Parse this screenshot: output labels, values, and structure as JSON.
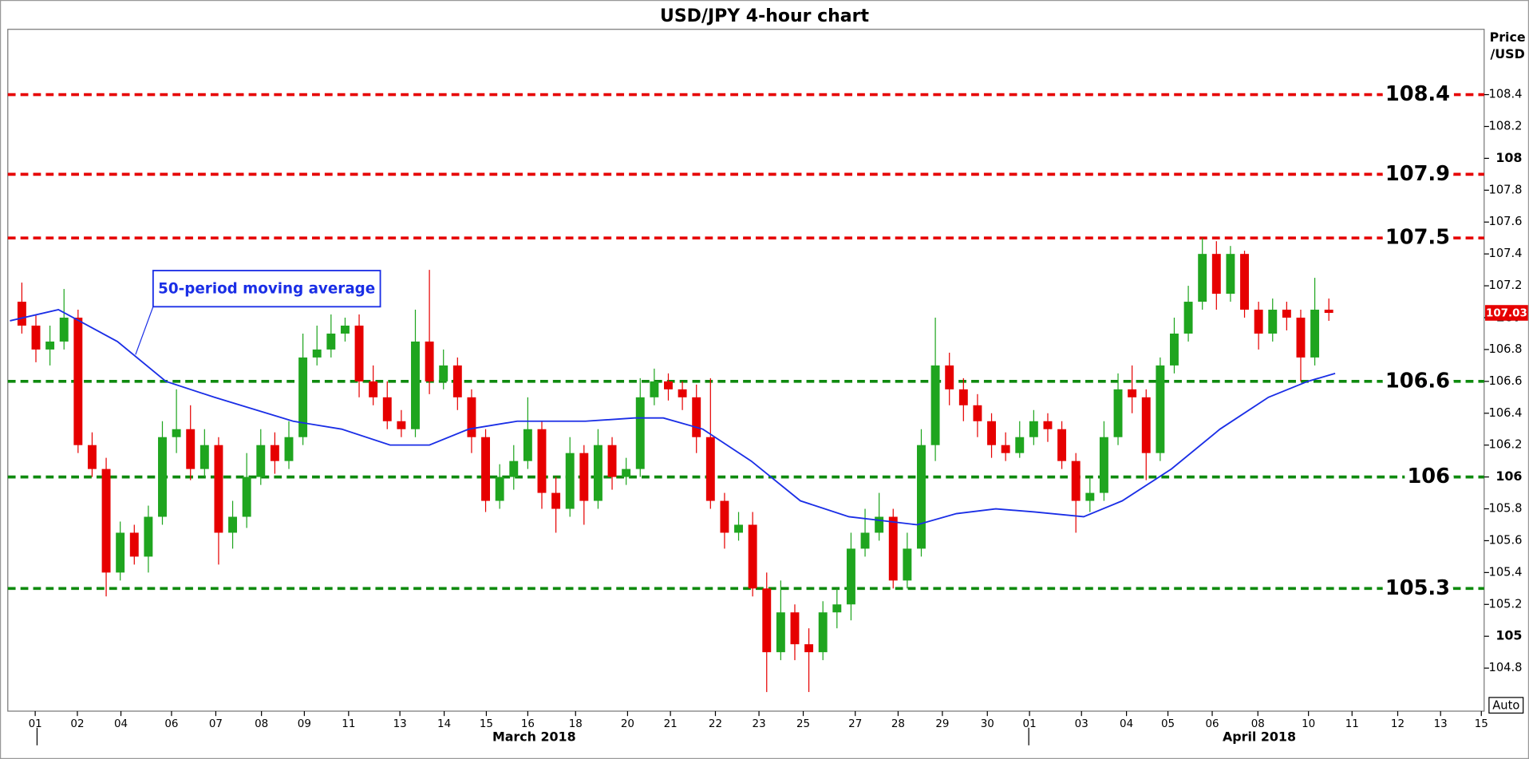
{
  "chart_data": {
    "type": "candlestick",
    "title": "USD/JPY 4-hour chart",
    "y_label": [
      "Price",
      "/USD"
    ],
    "up_color": "#1fa51f",
    "down_color": "#e60000",
    "x": [
      2,
      4,
      6,
      8,
      10,
      12,
      14,
      16,
      18,
      20,
      22,
      24,
      26,
      28,
      30,
      32,
      34,
      36,
      38,
      40,
      42,
      44,
      46,
      48,
      50,
      52,
      54,
      56,
      58,
      60,
      62,
      64,
      66,
      68,
      70,
      72,
      74,
      76,
      78,
      80,
      82,
      84,
      86,
      88,
      90,
      92,
      94,
      96,
      98,
      100,
      102,
      104,
      106,
      108,
      110,
      112,
      114,
      116,
      118,
      120,
      122,
      124,
      126,
      128,
      130,
      132,
      134,
      136,
      138,
      140,
      142,
      144,
      146,
      148,
      150,
      152,
      154,
      156,
      158,
      160,
      162,
      164,
      166,
      168,
      170,
      172,
      174,
      176,
      178,
      180,
      182,
      184,
      186,
      188
    ],
    "open": [
      107.1,
      106.95,
      106.8,
      106.85,
      107.0,
      106.2,
      106.05,
      105.4,
      105.65,
      105.5,
      105.75,
      106.25,
      106.3,
      106.05,
      106.2,
      105.65,
      105.75,
      106.0,
      106.2,
      106.1,
      106.25,
      106.75,
      106.8,
      106.9,
      106.95,
      106.6,
      106.5,
      106.35,
      106.3,
      106.85,
      106.6,
      106.7,
      106.5,
      106.25,
      105.85,
      106.0,
      106.1,
      106.3,
      105.9,
      105.8,
      106.15,
      105.85,
      106.2,
      106.0,
      106.05,
      106.5,
      106.6,
      106.55,
      106.5,
      106.25,
      105.85,
      105.65,
      105.7,
      105.3,
      104.9,
      105.15,
      104.95,
      104.9,
      105.15,
      105.2,
      105.55,
      105.65,
      105.75,
      105.35,
      105.55,
      106.2,
      106.7,
      106.55,
      106.45,
      106.35,
      106.2,
      106.15,
      106.25,
      106.35,
      106.3,
      106.1,
      105.85,
      105.9,
      106.25,
      106.55,
      106.5,
      106.15,
      106.7,
      106.9,
      107.1,
      107.4,
      107.15,
      107.4,
      107.05,
      106.9,
      107.05,
      107.0,
      106.75,
      107.05
    ],
    "high": [
      107.22,
      107.02,
      106.95,
      107.18,
      107.05,
      106.28,
      106.12,
      105.72,
      105.7,
      105.82,
      106.35,
      106.55,
      106.45,
      106.3,
      106.25,
      105.85,
      106.15,
      106.3,
      106.28,
      106.35,
      106.9,
      106.95,
      107.02,
      107.0,
      107.02,
      106.7,
      106.6,
      106.42,
      107.05,
      107.3,
      106.8,
      106.75,
      106.55,
      106.3,
      106.08,
      106.2,
      106.5,
      106.35,
      106.0,
      106.25,
      106.2,
      106.3,
      106.25,
      106.12,
      106.62,
      106.68,
      106.65,
      106.6,
      106.58,
      106.62,
      105.9,
      105.78,
      105.78,
      105.4,
      105.35,
      105.2,
      105.05,
      105.22,
      105.3,
      105.65,
      105.8,
      105.9,
      105.8,
      105.65,
      106.3,
      107.0,
      106.78,
      106.62,
      106.52,
      106.4,
      106.28,
      106.35,
      106.42,
      106.4,
      106.35,
      106.15,
      106.0,
      106.35,
      106.65,
      106.7,
      106.55,
      106.75,
      107.0,
      107.2,
      107.5,
      107.48,
      107.45,
      107.42,
      107.1,
      107.12,
      107.1,
      107.05,
      107.25,
      107.12
    ],
    "low": [
      106.9,
      106.72,
      106.7,
      106.8,
      106.15,
      106.0,
      105.25,
      105.35,
      105.45,
      105.4,
      105.7,
      106.15,
      105.98,
      106.0,
      105.45,
      105.55,
      105.68,
      105.95,
      106.02,
      106.05,
      106.2,
      106.7,
      106.75,
      106.85,
      106.5,
      106.45,
      106.3,
      106.25,
      106.25,
      106.52,
      106.55,
      106.42,
      106.15,
      105.78,
      105.8,
      105.92,
      106.05,
      105.8,
      105.65,
      105.75,
      105.7,
      105.8,
      105.92,
      105.95,
      106.0,
      106.45,
      106.48,
      106.42,
      106.15,
      105.8,
      105.55,
      105.6,
      105.25,
      104.65,
      104.85,
      104.85,
      104.65,
      104.85,
      105.05,
      105.1,
      105.5,
      105.6,
      105.3,
      105.3,
      105.5,
      106.1,
      106.45,
      106.35,
      106.25,
      106.12,
      106.1,
      106.12,
      106.2,
      106.22,
      106.05,
      105.65,
      105.78,
      105.85,
      106.2,
      106.4,
      105.98,
      106.1,
      106.65,
      106.85,
      107.05,
      107.05,
      107.1,
      107.0,
      106.8,
      106.85,
      106.92,
      106.6,
      106.7,
      106.98
    ],
    "close": [
      106.95,
      106.8,
      106.85,
      107.0,
      106.2,
      106.05,
      105.4,
      105.65,
      105.5,
      105.75,
      106.25,
      106.3,
      106.05,
      106.2,
      105.65,
      105.75,
      106.0,
      106.2,
      106.1,
      106.25,
      106.75,
      106.8,
      106.9,
      106.95,
      106.6,
      106.5,
      106.35,
      106.3,
      106.85,
      106.6,
      106.7,
      106.5,
      106.25,
      105.85,
      106.0,
      106.1,
      106.3,
      105.9,
      105.8,
      106.15,
      105.85,
      106.2,
      106.0,
      106.05,
      106.5,
      106.6,
      106.55,
      106.5,
      106.25,
      105.85,
      105.65,
      105.7,
      105.3,
      104.9,
      105.15,
      104.95,
      104.9,
      105.15,
      105.2,
      105.55,
      105.65,
      105.75,
      105.35,
      105.55,
      106.2,
      106.7,
      106.55,
      106.45,
      106.35,
      106.2,
      106.15,
      106.25,
      106.35,
      106.3,
      106.1,
      105.85,
      105.9,
      106.25,
      106.55,
      106.5,
      106.15,
      106.7,
      106.9,
      107.1,
      107.4,
      107.15,
      107.4,
      107.05,
      106.9,
      107.05,
      107.0,
      106.75,
      107.05,
      107.03
    ],
    "moving_average": {
      "color": "#1a2ee6",
      "x": [
        0.3,
        7.2,
        15.6,
        22.5,
        29.4,
        40.6,
        47.5,
        54.4,
        60,
        65.6,
        72.5,
        82.2,
        89.2,
        93.3,
        98.9,
        105.8,
        112.8,
        119.7,
        129.4,
        135,
        140.6,
        146.1,
        153.1,
        158.6,
        165.6,
        172.5,
        179.4,
        185,
        188.9
      ],
      "values": [
        106.98,
        107.05,
        106.85,
        106.6,
        106.5,
        106.35,
        106.3,
        106.2,
        106.2,
        106.3,
        106.35,
        106.35,
        106.37,
        106.37,
        106.3,
        106.1,
        105.85,
        105.75,
        105.7,
        105.77,
        105.8,
        105.78,
        105.75,
        105.85,
        106.05,
        106.3,
        106.5,
        106.6,
        106.65
      ]
    },
    "annotation": "50-period moving average",
    "levels": [
      {
        "value": 108.4,
        "color": "#e60000"
      },
      {
        "value": 107.9,
        "color": "#e60000"
      },
      {
        "value": 107.5,
        "color": "#e60000"
      },
      {
        "value": 106.6,
        "color": "#0e8a0e"
      },
      {
        "value": 106,
        "color": "#0e8a0e"
      },
      {
        "value": 105.3,
        "color": "#0e8a0e"
      }
    ],
    "last_price": 107.03,
    "xlim": [
      0,
      210.1
    ],
    "ylim": [
      104.53,
      108.81
    ],
    "yticks": [
      104.8,
      105,
      105.2,
      105.4,
      105.6,
      105.8,
      106,
      106.2,
      106.4,
      106.6,
      106.8,
      107,
      107.2,
      107.4,
      107.6,
      107.8,
      108,
      108.2,
      108.4
    ],
    "xticks": [
      {
        "value": 3.9,
        "label": "01"
      },
      {
        "value": 9.9,
        "label": "02"
      },
      {
        "value": 16.1,
        "label": "04"
      },
      {
        "value": 23.3,
        "label": "06"
      },
      {
        "value": 29.6,
        "label": "07"
      },
      {
        "value": 36.1,
        "label": "08"
      },
      {
        "value": 42.2,
        "label": "09"
      },
      {
        "value": 48.5,
        "label": "11"
      },
      {
        "value": 55.8,
        "label": "13"
      },
      {
        "value": 62.1,
        "label": "14"
      },
      {
        "value": 68.1,
        "label": "15"
      },
      {
        "value": 74,
        "label": "16"
      },
      {
        "value": 80.8,
        "label": "18"
      },
      {
        "value": 88.2,
        "label": "20"
      },
      {
        "value": 94.3,
        "label": "21"
      },
      {
        "value": 100.7,
        "label": "22"
      },
      {
        "value": 106.9,
        "label": "23"
      },
      {
        "value": 113.2,
        "label": "25"
      },
      {
        "value": 120.6,
        "label": "27"
      },
      {
        "value": 126.7,
        "label": "28"
      },
      {
        "value": 133,
        "label": "29"
      },
      {
        "value": 139.4,
        "label": "30"
      },
      {
        "value": 145.4,
        "label": "01"
      },
      {
        "value": 152.8,
        "label": "03"
      },
      {
        "value": 159.2,
        "label": "04"
      },
      {
        "value": 165.1,
        "label": "05"
      },
      {
        "value": 171.4,
        "label": "06"
      },
      {
        "value": 177.9,
        "label": "08"
      },
      {
        "value": 185.1,
        "label": "10"
      },
      {
        "value": 191.3,
        "label": "11"
      },
      {
        "value": 197.8,
        "label": "12"
      },
      {
        "value": 203.9,
        "label": "13"
      },
      {
        "value": 209.7,
        "label": "15"
      }
    ],
    "month_labels": [
      {
        "value": 74.9,
        "label": "March 2018"
      },
      {
        "value": 178.1,
        "label": "April 2018"
      }
    ],
    "auto_button": "Auto"
  }
}
